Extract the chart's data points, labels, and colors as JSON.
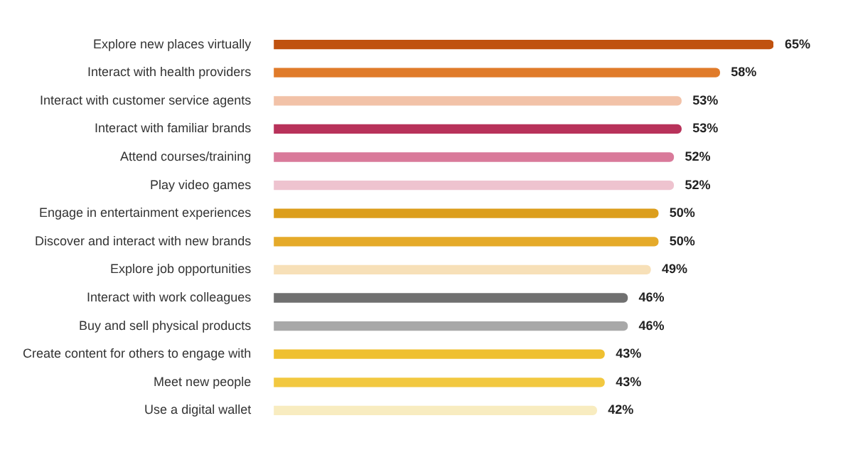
{
  "chart_data": {
    "type": "bar",
    "orientation": "horizontal",
    "categories": [
      "Explore new places virtually",
      "Interact with health providers",
      "Interact with customer service agents",
      "Interact with familiar brands",
      "Attend courses/training",
      "Play video games",
      "Engage in entertainment experiences",
      "Discover and interact with new brands",
      "Explore job opportunities",
      "Interact with work colleagues",
      "Buy and sell physical products",
      "Create content for others to engage with",
      "Meet new people",
      "Use a digital wallet"
    ],
    "values": [
      65,
      58,
      53,
      53,
      52,
      52,
      50,
      50,
      49,
      46,
      46,
      43,
      43,
      42
    ],
    "value_labels": [
      "65%",
      "58%",
      "53%",
      "53%",
      "52%",
      "52%",
      "50%",
      "50%",
      "49%",
      "46%",
      "46%",
      "43%",
      "43%",
      "42%"
    ],
    "colors": [
      "#c0520f",
      "#e07b2a",
      "#f2c2a8",
      "#b8325a",
      "#d97a9a",
      "#eec3cf",
      "#dc9e1c",
      "#e5aa2a",
      "#f7e0b8",
      "#707070",
      "#a8a8a8",
      "#efc030",
      "#f2c840",
      "#f8ecc0"
    ],
    "xlim": [
      0,
      65
    ],
    "legend": false,
    "tick_labels": "y"
  }
}
